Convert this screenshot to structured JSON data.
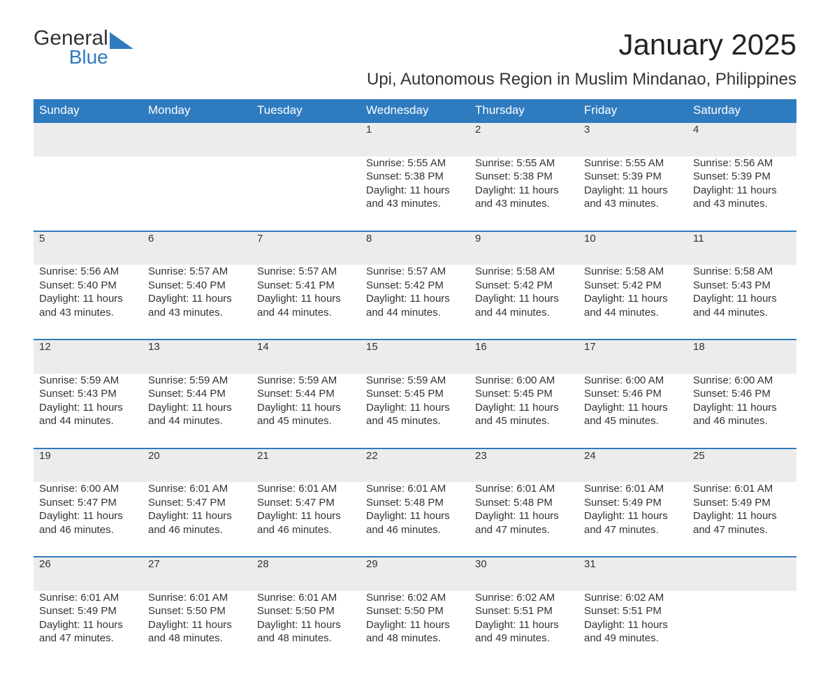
{
  "brand": {
    "part1": "General",
    "part2": "Blue",
    "triangle_color": "#2f7bbf"
  },
  "title": "January 2025",
  "subtitle": "Upi, Autonomous Region in Muslim Mindanao, Philippines",
  "colors": {
    "header_bg": "#2f7bbf",
    "header_text": "#ffffff",
    "daynum_bg": "#ececec",
    "daynum_border": "#2f7bbf",
    "body_text": "#333333",
    "page_bg": "#ffffff"
  },
  "weekdays": [
    "Sunday",
    "Monday",
    "Tuesday",
    "Wednesday",
    "Thursday",
    "Friday",
    "Saturday"
  ],
  "weeks": [
    [
      null,
      null,
      null,
      {
        "n": "1",
        "sr": "Sunrise: 5:55 AM",
        "ss": "Sunset: 5:38 PM",
        "dl": "Daylight: 11 hours and 43 minutes."
      },
      {
        "n": "2",
        "sr": "Sunrise: 5:55 AM",
        "ss": "Sunset: 5:38 PM",
        "dl": "Daylight: 11 hours and 43 minutes."
      },
      {
        "n": "3",
        "sr": "Sunrise: 5:55 AM",
        "ss": "Sunset: 5:39 PM",
        "dl": "Daylight: 11 hours and 43 minutes."
      },
      {
        "n": "4",
        "sr": "Sunrise: 5:56 AM",
        "ss": "Sunset: 5:39 PM",
        "dl": "Daylight: 11 hours and 43 minutes."
      }
    ],
    [
      {
        "n": "5",
        "sr": "Sunrise: 5:56 AM",
        "ss": "Sunset: 5:40 PM",
        "dl": "Daylight: 11 hours and 43 minutes."
      },
      {
        "n": "6",
        "sr": "Sunrise: 5:57 AM",
        "ss": "Sunset: 5:40 PM",
        "dl": "Daylight: 11 hours and 43 minutes."
      },
      {
        "n": "7",
        "sr": "Sunrise: 5:57 AM",
        "ss": "Sunset: 5:41 PM",
        "dl": "Daylight: 11 hours and 44 minutes."
      },
      {
        "n": "8",
        "sr": "Sunrise: 5:57 AM",
        "ss": "Sunset: 5:42 PM",
        "dl": "Daylight: 11 hours and 44 minutes."
      },
      {
        "n": "9",
        "sr": "Sunrise: 5:58 AM",
        "ss": "Sunset: 5:42 PM",
        "dl": "Daylight: 11 hours and 44 minutes."
      },
      {
        "n": "10",
        "sr": "Sunrise: 5:58 AM",
        "ss": "Sunset: 5:42 PM",
        "dl": "Daylight: 11 hours and 44 minutes."
      },
      {
        "n": "11",
        "sr": "Sunrise: 5:58 AM",
        "ss": "Sunset: 5:43 PM",
        "dl": "Daylight: 11 hours and 44 minutes."
      }
    ],
    [
      {
        "n": "12",
        "sr": "Sunrise: 5:59 AM",
        "ss": "Sunset: 5:43 PM",
        "dl": "Daylight: 11 hours and 44 minutes."
      },
      {
        "n": "13",
        "sr": "Sunrise: 5:59 AM",
        "ss": "Sunset: 5:44 PM",
        "dl": "Daylight: 11 hours and 44 minutes."
      },
      {
        "n": "14",
        "sr": "Sunrise: 5:59 AM",
        "ss": "Sunset: 5:44 PM",
        "dl": "Daylight: 11 hours and 45 minutes."
      },
      {
        "n": "15",
        "sr": "Sunrise: 5:59 AM",
        "ss": "Sunset: 5:45 PM",
        "dl": "Daylight: 11 hours and 45 minutes."
      },
      {
        "n": "16",
        "sr": "Sunrise: 6:00 AM",
        "ss": "Sunset: 5:45 PM",
        "dl": "Daylight: 11 hours and 45 minutes."
      },
      {
        "n": "17",
        "sr": "Sunrise: 6:00 AM",
        "ss": "Sunset: 5:46 PM",
        "dl": "Daylight: 11 hours and 45 minutes."
      },
      {
        "n": "18",
        "sr": "Sunrise: 6:00 AM",
        "ss": "Sunset: 5:46 PM",
        "dl": "Daylight: 11 hours and 46 minutes."
      }
    ],
    [
      {
        "n": "19",
        "sr": "Sunrise: 6:00 AM",
        "ss": "Sunset: 5:47 PM",
        "dl": "Daylight: 11 hours and 46 minutes."
      },
      {
        "n": "20",
        "sr": "Sunrise: 6:01 AM",
        "ss": "Sunset: 5:47 PM",
        "dl": "Daylight: 11 hours and 46 minutes."
      },
      {
        "n": "21",
        "sr": "Sunrise: 6:01 AM",
        "ss": "Sunset: 5:47 PM",
        "dl": "Daylight: 11 hours and 46 minutes."
      },
      {
        "n": "22",
        "sr": "Sunrise: 6:01 AM",
        "ss": "Sunset: 5:48 PM",
        "dl": "Daylight: 11 hours and 46 minutes."
      },
      {
        "n": "23",
        "sr": "Sunrise: 6:01 AM",
        "ss": "Sunset: 5:48 PM",
        "dl": "Daylight: 11 hours and 47 minutes."
      },
      {
        "n": "24",
        "sr": "Sunrise: 6:01 AM",
        "ss": "Sunset: 5:49 PM",
        "dl": "Daylight: 11 hours and 47 minutes."
      },
      {
        "n": "25",
        "sr": "Sunrise: 6:01 AM",
        "ss": "Sunset: 5:49 PM",
        "dl": "Daylight: 11 hours and 47 minutes."
      }
    ],
    [
      {
        "n": "26",
        "sr": "Sunrise: 6:01 AM",
        "ss": "Sunset: 5:49 PM",
        "dl": "Daylight: 11 hours and 47 minutes."
      },
      {
        "n": "27",
        "sr": "Sunrise: 6:01 AM",
        "ss": "Sunset: 5:50 PM",
        "dl": "Daylight: 11 hours and 48 minutes."
      },
      {
        "n": "28",
        "sr": "Sunrise: 6:01 AM",
        "ss": "Sunset: 5:50 PM",
        "dl": "Daylight: 11 hours and 48 minutes."
      },
      {
        "n": "29",
        "sr": "Sunrise: 6:02 AM",
        "ss": "Sunset: 5:50 PM",
        "dl": "Daylight: 11 hours and 48 minutes."
      },
      {
        "n": "30",
        "sr": "Sunrise: 6:02 AM",
        "ss": "Sunset: 5:51 PM",
        "dl": "Daylight: 11 hours and 49 minutes."
      },
      {
        "n": "31",
        "sr": "Sunrise: 6:02 AM",
        "ss": "Sunset: 5:51 PM",
        "dl": "Daylight: 11 hours and 49 minutes."
      },
      null
    ]
  ]
}
